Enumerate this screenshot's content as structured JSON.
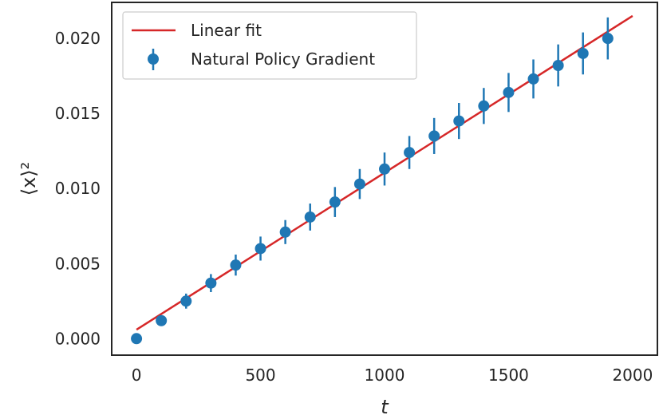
{
  "chart_data": {
    "type": "scatter",
    "title": "",
    "xlabel": "t",
    "ylabel": "⟨x⟩²",
    "xlim": [
      -100,
      2100
    ],
    "ylim": [
      -0.0011,
      0.0224
    ],
    "xticks": [
      0,
      500,
      1000,
      1500,
      2000
    ],
    "xtick_labels": [
      "0",
      "500",
      "1000",
      "1500",
      "2000"
    ],
    "yticks": [
      0.0,
      0.005,
      0.01,
      0.015,
      0.02
    ],
    "ytick_labels": [
      "0.000",
      "0.005",
      "0.010",
      "0.015",
      "0.020"
    ],
    "grid": false,
    "legend_position": "top-left",
    "series": [
      {
        "name": "Natural Policy Gradient",
        "kind": "errorbar",
        "color": "#1f77b4",
        "x": [
          0,
          100,
          200,
          300,
          400,
          500,
          600,
          700,
          800,
          900,
          1000,
          1100,
          1200,
          1300,
          1400,
          1500,
          1600,
          1700,
          1800,
          1900
        ],
        "y": [
          0.0,
          0.0012,
          0.0025,
          0.0037,
          0.0049,
          0.006,
          0.0071,
          0.0081,
          0.0091,
          0.0103,
          0.0113,
          0.0124,
          0.0135,
          0.0145,
          0.0155,
          0.0164,
          0.0173,
          0.0182,
          0.019,
          0.02
        ],
        "yerr": [
          0.0,
          0.0002,
          0.0005,
          0.0006,
          0.0007,
          0.0008,
          0.0008,
          0.0009,
          0.001,
          0.001,
          0.0011,
          0.0011,
          0.0012,
          0.0012,
          0.0012,
          0.0013,
          0.0013,
          0.0014,
          0.0014,
          0.0014
        ]
      },
      {
        "name": "Linear fit",
        "kind": "line",
        "color": "#d62728",
        "x": [
          0,
          2000
        ],
        "y": [
          0.0006,
          0.0215
        ]
      }
    ]
  }
}
